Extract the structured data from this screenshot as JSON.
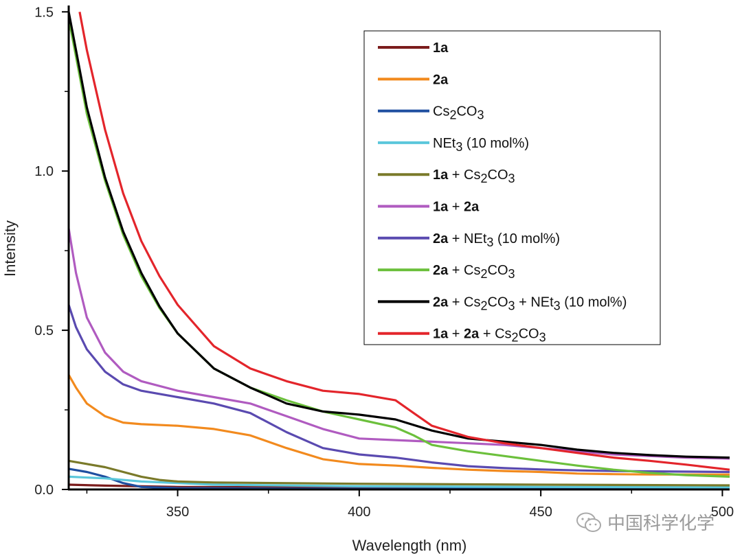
{
  "chart_data": {
    "type": "line",
    "xlabel": "Wavelength (nm)",
    "ylabel": "Intensity",
    "xlim": [
      320,
      502
    ],
    "ylim": [
      0.0,
      1.52
    ],
    "xticks": [
      350,
      400,
      450,
      500
    ],
    "xtick_labels": [
      "350",
      "400",
      "450",
      "500"
    ],
    "yticks": [
      0.0,
      0.5,
      1.0,
      1.5
    ],
    "ytick_labels": [
      "0.0",
      "0.5",
      "1.0",
      "1.5"
    ],
    "legend_position": "top-right",
    "series": [
      {
        "name": "1a",
        "color": "#7b1c1c",
        "points": [
          [
            320,
            0.015
          ],
          [
            330,
            0.012
          ],
          [
            340,
            0.01
          ],
          [
            350,
            0.008
          ],
          [
            400,
            0.006
          ],
          [
            450,
            0.005
          ],
          [
            502,
            0.005
          ]
        ]
      },
      {
        "name": "2a",
        "color": "#f28a1e",
        "points": [
          [
            320,
            0.36
          ],
          [
            322,
            0.32
          ],
          [
            325,
            0.27
          ],
          [
            330,
            0.23
          ],
          [
            335,
            0.21
          ],
          [
            340,
            0.205
          ],
          [
            350,
            0.2
          ],
          [
            360,
            0.19
          ],
          [
            370,
            0.17
          ],
          [
            380,
            0.13
          ],
          [
            390,
            0.095
          ],
          [
            400,
            0.08
          ],
          [
            410,
            0.075
          ],
          [
            420,
            0.068
          ],
          [
            430,
            0.062
          ],
          [
            440,
            0.058
          ],
          [
            450,
            0.055
          ],
          [
            460,
            0.05
          ],
          [
            470,
            0.048
          ],
          [
            480,
            0.047
          ],
          [
            490,
            0.047
          ],
          [
            502,
            0.047
          ]
        ]
      },
      {
        "name": "Cs2CO3",
        "color": "#1f4fa0",
        "points": [
          [
            320,
            0.065
          ],
          [
            325,
            0.055
          ],
          [
            330,
            0.04
          ],
          [
            335,
            0.02
          ],
          [
            340,
            0.008
          ],
          [
            350,
            0.004
          ],
          [
            400,
            0.002
          ],
          [
            450,
            0.002
          ],
          [
            502,
            0.002
          ]
        ]
      },
      {
        "name": "NEt3 (10 mol%)",
        "color": "#5bc7db",
        "points": [
          [
            320,
            0.04
          ],
          [
            330,
            0.035
          ],
          [
            340,
            0.025
          ],
          [
            350,
            0.02
          ],
          [
            360,
            0.015
          ],
          [
            400,
            0.01
          ],
          [
            450,
            0.008
          ],
          [
            502,
            0.007
          ]
        ]
      },
      {
        "name": "1a + Cs2CO3",
        "color": "#7a7a2a",
        "points": [
          [
            320,
            0.09
          ],
          [
            330,
            0.07
          ],
          [
            340,
            0.04
          ],
          [
            345,
            0.03
          ],
          [
            350,
            0.025
          ],
          [
            360,
            0.022
          ],
          [
            400,
            0.018
          ],
          [
            450,
            0.015
          ],
          [
            502,
            0.013
          ]
        ]
      },
      {
        "name": "1a + 2a",
        "color": "#b05bc0",
        "points": [
          [
            320,
            0.82
          ],
          [
            322,
            0.68
          ],
          [
            325,
            0.54
          ],
          [
            330,
            0.43
          ],
          [
            335,
            0.37
          ],
          [
            340,
            0.34
          ],
          [
            350,
            0.31
          ],
          [
            360,
            0.29
          ],
          [
            370,
            0.27
          ],
          [
            380,
            0.23
          ],
          [
            390,
            0.19
          ],
          [
            400,
            0.16
          ],
          [
            410,
            0.155
          ],
          [
            420,
            0.15
          ],
          [
            430,
            0.145
          ],
          [
            440,
            0.14
          ],
          [
            450,
            0.13
          ],
          [
            460,
            0.12
          ],
          [
            470,
            0.11
          ],
          [
            480,
            0.105
          ],
          [
            490,
            0.1
          ],
          [
            502,
            0.097
          ]
        ]
      },
      {
        "name": "2a + NEt3 (10 mol%)",
        "color": "#5a4ab0",
        "points": [
          [
            320,
            0.58
          ],
          [
            322,
            0.51
          ],
          [
            325,
            0.44
          ],
          [
            330,
            0.37
          ],
          [
            335,
            0.33
          ],
          [
            340,
            0.31
          ],
          [
            350,
            0.29
          ],
          [
            360,
            0.27
          ],
          [
            370,
            0.24
          ],
          [
            380,
            0.18
          ],
          [
            390,
            0.13
          ],
          [
            400,
            0.11
          ],
          [
            410,
            0.1
          ],
          [
            420,
            0.085
          ],
          [
            430,
            0.073
          ],
          [
            440,
            0.067
          ],
          [
            450,
            0.063
          ],
          [
            460,
            0.06
          ],
          [
            470,
            0.058
          ],
          [
            480,
            0.057
          ],
          [
            490,
            0.056
          ],
          [
            502,
            0.055
          ]
        ]
      },
      {
        "name": "2a + Cs2CO3",
        "color": "#6cc03c",
        "points": [
          [
            320,
            1.48
          ],
          [
            322,
            1.36
          ],
          [
            325,
            1.18
          ],
          [
            330,
            0.97
          ],
          [
            335,
            0.8
          ],
          [
            340,
            0.67
          ],
          [
            345,
            0.57
          ],
          [
            350,
            0.49
          ],
          [
            360,
            0.38
          ],
          [
            370,
            0.32
          ],
          [
            380,
            0.28
          ],
          [
            390,
            0.245
          ],
          [
            400,
            0.22
          ],
          [
            410,
            0.195
          ],
          [
            415,
            0.17
          ],
          [
            420,
            0.14
          ],
          [
            430,
            0.12
          ],
          [
            440,
            0.105
          ],
          [
            450,
            0.09
          ],
          [
            460,
            0.075
          ],
          [
            470,
            0.062
          ],
          [
            480,
            0.052
          ],
          [
            490,
            0.045
          ],
          [
            502,
            0.04
          ]
        ]
      },
      {
        "name": "2a + Cs2CO3 + NEt3 (10 mol%)",
        "color": "#000000",
        "points": [
          [
            320,
            1.5
          ],
          [
            322,
            1.38
          ],
          [
            325,
            1.2
          ],
          [
            330,
            0.98
          ],
          [
            335,
            0.81
          ],
          [
            340,
            0.68
          ],
          [
            345,
            0.575
          ],
          [
            350,
            0.49
          ],
          [
            360,
            0.38
          ],
          [
            370,
            0.32
          ],
          [
            380,
            0.27
          ],
          [
            390,
            0.245
          ],
          [
            400,
            0.235
          ],
          [
            410,
            0.22
          ],
          [
            420,
            0.185
          ],
          [
            430,
            0.16
          ],
          [
            440,
            0.15
          ],
          [
            450,
            0.14
          ],
          [
            460,
            0.125
          ],
          [
            470,
            0.115
          ],
          [
            480,
            0.108
          ],
          [
            490,
            0.103
          ],
          [
            502,
            0.1
          ]
        ]
      },
      {
        "name": "1a + 2a + Cs2CO3",
        "color": "#e3252b",
        "points": [
          [
            323,
            1.5
          ],
          [
            325,
            1.38
          ],
          [
            330,
            1.13
          ],
          [
            335,
            0.93
          ],
          [
            340,
            0.78
          ],
          [
            345,
            0.67
          ],
          [
            350,
            0.58
          ],
          [
            360,
            0.45
          ],
          [
            370,
            0.38
          ],
          [
            380,
            0.34
          ],
          [
            390,
            0.31
          ],
          [
            400,
            0.3
          ],
          [
            410,
            0.28
          ],
          [
            415,
            0.24
          ],
          [
            420,
            0.2
          ],
          [
            430,
            0.165
          ],
          [
            440,
            0.145
          ],
          [
            450,
            0.13
          ],
          [
            460,
            0.115
          ],
          [
            470,
            0.1
          ],
          [
            480,
            0.09
          ],
          [
            490,
            0.078
          ],
          [
            502,
            0.062
          ]
        ]
      }
    ],
    "legend": [
      {
        "color": "#7b1c1c",
        "parts": [
          {
            "t": "1a",
            "b": true
          }
        ]
      },
      {
        "color": "#f28a1e",
        "parts": [
          {
            "t": "2a",
            "b": true
          }
        ]
      },
      {
        "color": "#1f4fa0",
        "parts": [
          {
            "t": "Cs"
          },
          {
            "t": "2",
            "sub": true
          },
          {
            "t": "CO"
          },
          {
            "t": "3",
            "sub": true
          }
        ]
      },
      {
        "color": "#5bc7db",
        "parts": [
          {
            "t": "NEt"
          },
          {
            "t": "3",
            "sub": true
          },
          {
            "t": " (10 mol%)"
          }
        ]
      },
      {
        "color": "#7a7a2a",
        "parts": [
          {
            "t": "1a",
            "b": true
          },
          {
            "t": " + Cs"
          },
          {
            "t": "2",
            "sub": true
          },
          {
            "t": "CO"
          },
          {
            "t": "3",
            "sub": true
          }
        ]
      },
      {
        "color": "#b05bc0",
        "parts": [
          {
            "t": "1a",
            "b": true
          },
          {
            "t": " + "
          },
          {
            "t": "2a",
            "b": true
          }
        ]
      },
      {
        "color": "#5a4ab0",
        "parts": [
          {
            "t": " 2a",
            "b": true
          },
          {
            "t": " + NEt"
          },
          {
            "t": "3",
            "sub": true
          },
          {
            "t": " (10 mol%)"
          }
        ]
      },
      {
        "color": "#6cc03c",
        "parts": [
          {
            "t": "2a",
            "b": true
          },
          {
            "t": " + Cs"
          },
          {
            "t": "2",
            "sub": true
          },
          {
            "t": "CO"
          },
          {
            "t": "3",
            "sub": true
          }
        ]
      },
      {
        "color": "#000000",
        "parts": [
          {
            "t": "2a",
            "b": true
          },
          {
            "t": " + Cs"
          },
          {
            "t": "2",
            "sub": true
          },
          {
            "t": "CO"
          },
          {
            "t": "3",
            "sub": true
          },
          {
            "t": " + NEt"
          },
          {
            "t": "3",
            "sub": true
          },
          {
            "t": " (10 mol%)"
          }
        ]
      },
      {
        "color": "#e3252b",
        "parts": [
          {
            "t": "1a",
            "b": true
          },
          {
            "t": " + "
          },
          {
            "t": "2a",
            "b": true
          },
          {
            "t": " + Cs"
          },
          {
            "t": "2",
            "sub": true
          },
          {
            "t": "CO"
          },
          {
            "t": "3",
            "sub": true
          }
        ]
      }
    ]
  },
  "watermark": {
    "text": "中国科学化学",
    "icon": "wechat-icon"
  }
}
